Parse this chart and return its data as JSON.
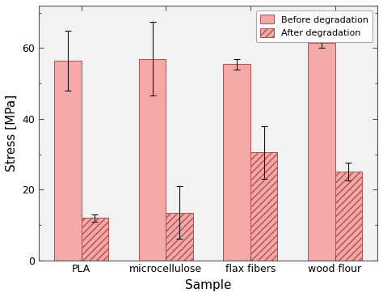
{
  "categories": [
    "PLA",
    "microcellulose",
    "flax fibers",
    "wood flour"
  ],
  "before_values": [
    56.5,
    57.0,
    55.5,
    61.5
  ],
  "before_errors": [
    8.5,
    10.5,
    1.5,
    1.5
  ],
  "after_values": [
    12.0,
    13.5,
    30.5,
    25.0
  ],
  "after_errors": [
    1.0,
    7.5,
    7.5,
    2.5
  ],
  "bar_color": "#f4a8a8",
  "hatch_pattern": "////",
  "edge_color": "#b05050",
  "error_color": "#111111",
  "ylabel": "Stress [MPa]",
  "xlabel": "Sample",
  "ylim": [
    0,
    72
  ],
  "yticks": [
    0,
    20,
    40,
    60
  ],
  "legend_labels": [
    "Before degradation",
    "After degradation"
  ],
  "bar_width": 0.32,
  "background_color": "#f2f2f2",
  "fig_facecolor": "#ffffff"
}
